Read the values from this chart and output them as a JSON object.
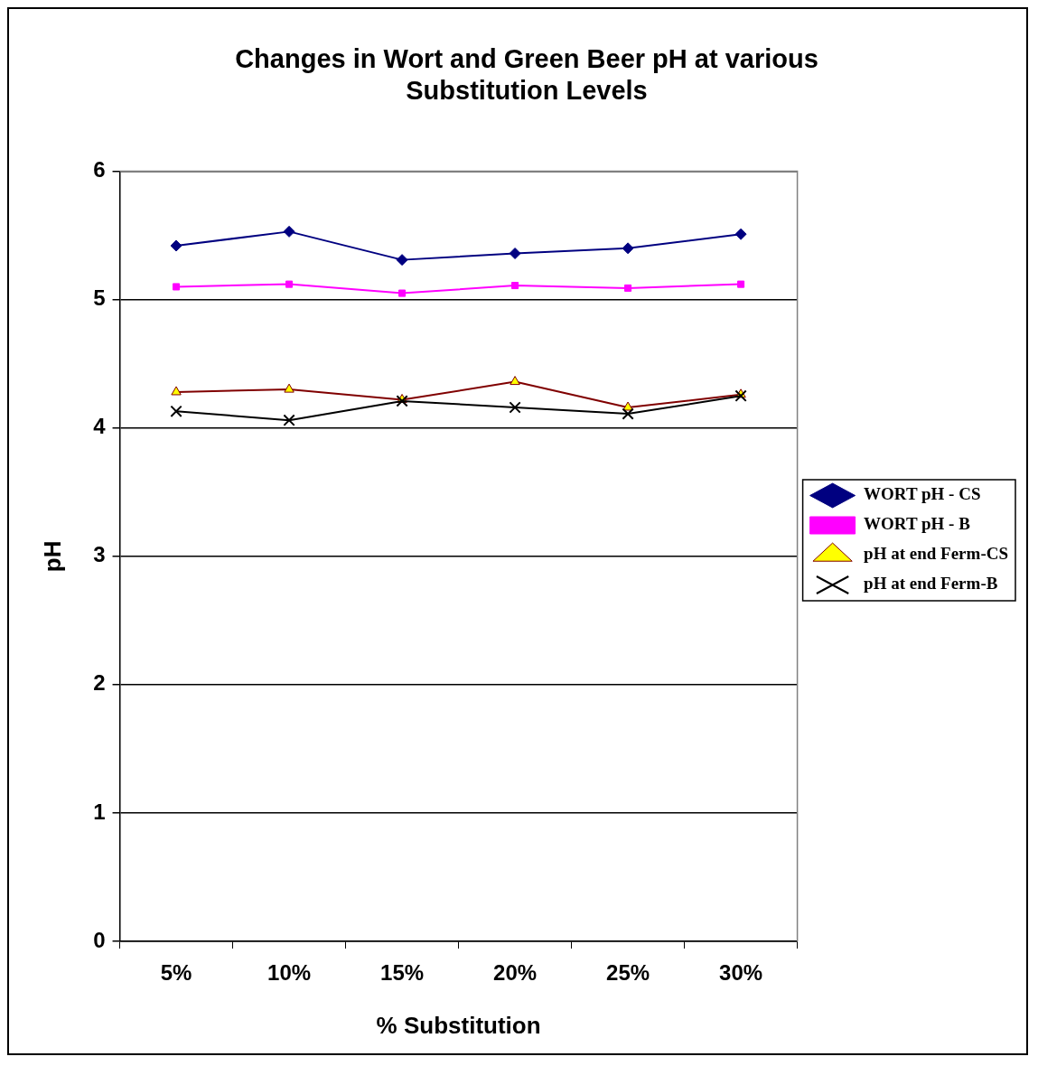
{
  "chart_data": {
    "type": "line",
    "title": "Changes in Wort and Green Beer pH at various Substitution Levels",
    "xlabel": "% Substitution",
    "ylabel": "pH",
    "categories": [
      "5%",
      "10%",
      "15%",
      "20%",
      "25%",
      "30%"
    ],
    "series": [
      {
        "name": "WORT pH - CS",
        "color": "#000080",
        "marker": "diamond",
        "values": [
          5.42,
          5.53,
          5.31,
          5.36,
          5.4,
          5.51
        ]
      },
      {
        "name": "WORT pH - B",
        "color": "#ff00ff",
        "marker": "square",
        "values": [
          5.1,
          5.12,
          5.05,
          5.11,
          5.09,
          5.12
        ]
      },
      {
        "name": "pH at end Ferm-CS",
        "color": "#800000",
        "marker": "triangle",
        "values": [
          4.28,
          4.3,
          4.22,
          4.36,
          4.16,
          4.26
        ]
      },
      {
        "name": "pH at end Ferm-B",
        "color": "#000000",
        "marker": "cross",
        "values": [
          4.13,
          4.06,
          4.21,
          4.16,
          4.11,
          4.25
        ]
      }
    ],
    "ylim": [
      0,
      6
    ],
    "yticks": [
      0,
      1,
      2,
      3,
      4,
      5,
      6
    ],
    "grid": "y",
    "legend": "right"
  }
}
